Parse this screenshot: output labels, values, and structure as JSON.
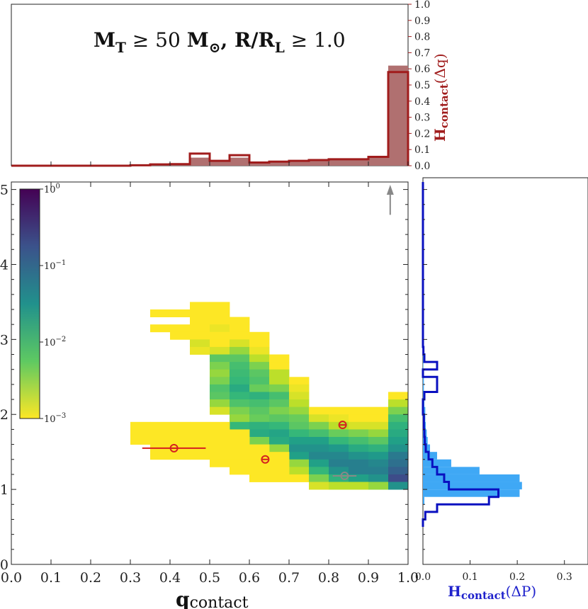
{
  "title": "M_T ≥ 50 M_⊙, R/R_L ≥ 1.0",
  "title_parts": {
    "mt_base": "M",
    "mt_sub": "T",
    "geq1": " ≥ 50 ",
    "msun_base": "M",
    "msun_sub": "⊙",
    "comma_r": ", R/R",
    "rl_sub": "L",
    "geq2": " ≥ 1.0"
  },
  "colors": {
    "top_hist_fill": "#b07070",
    "top_hist_line": "#a01c1c",
    "right_hist_fill": "#3fa8f5",
    "right_hist_line": "#0a10c0",
    "marker_red": "#d42020",
    "marker_gray": "#888888",
    "arrow_gray": "#888888"
  },
  "chart_data": [
    {
      "id": "main_heatmap",
      "type": "heatmap",
      "xlabel": "q_contact",
      "xlabel_parts": {
        "main": "q",
        "sub": "contact"
      },
      "ylabel": "",
      "xlim": [
        0.0,
        1.0
      ],
      "ylim": [
        0,
        5.1
      ],
      "x_ticks": [
        "0.0",
        "0.1",
        "0.2",
        "0.3",
        "0.4",
        "0.5",
        "0.6",
        "0.7",
        "0.8",
        "0.9",
        "1.0"
      ],
      "y_ticks": [
        "0",
        "1",
        "2",
        "3",
        "4",
        "5"
      ],
      "colorbar": {
        "scale": "log",
        "min": 0.001,
        "max": 1.0,
        "tick_labels": [
          "10^0",
          "10^-1",
          "10^-2",
          "10^-3"
        ],
        "ticks": [
          {
            "base": "10",
            "exp": "0"
          },
          {
            "base": "10",
            "exp": "−1"
          },
          {
            "base": "10",
            "exp": "−2"
          },
          {
            "base": "10",
            "exp": "−3"
          }
        ]
      },
      "cell_width_q": 0.05,
      "cell_height_p": 0.1,
      "cells": [
        [
          0.35,
          3.3,
          0.001
        ],
        [
          0.35,
          3.1,
          0.001
        ],
        [
          0.4,
          3.3,
          0.001
        ],
        [
          0.4,
          3.1,
          0.001
        ],
        [
          0.4,
          3.0,
          0.001
        ],
        [
          0.45,
          3.4,
          0.001
        ],
        [
          0.45,
          3.3,
          0.001
        ],
        [
          0.45,
          3.2,
          0.001
        ],
        [
          0.45,
          3.1,
          0.001
        ],
        [
          0.45,
          3.0,
          0.001
        ],
        [
          0.45,
          2.9,
          0.0015
        ],
        [
          0.45,
          2.8,
          0.0012
        ],
        [
          0.5,
          3.4,
          0.001
        ],
        [
          0.5,
          3.3,
          0.001
        ],
        [
          0.5,
          3.2,
          0.001
        ],
        [
          0.5,
          3.1,
          0.0012
        ],
        [
          0.5,
          3.0,
          0.001
        ],
        [
          0.5,
          2.9,
          0.001
        ],
        [
          0.5,
          2.8,
          0.0015
        ],
        [
          0.5,
          2.7,
          0.006
        ],
        [
          0.5,
          2.6,
          0.004
        ],
        [
          0.5,
          2.5,
          0.003
        ],
        [
          0.5,
          2.4,
          0.004
        ],
        [
          0.5,
          2.3,
          0.007
        ],
        [
          0.5,
          2.2,
          0.006
        ],
        [
          0.5,
          2.1,
          0.003
        ],
        [
          0.5,
          2.0,
          0.0015
        ],
        [
          0.55,
          3.2,
          0.001
        ],
        [
          0.55,
          3.1,
          0.001
        ],
        [
          0.55,
          3.0,
          0.001
        ],
        [
          0.55,
          2.9,
          0.0015
        ],
        [
          0.55,
          2.8,
          0.003
        ],
        [
          0.55,
          2.7,
          0.006
        ],
        [
          0.55,
          2.6,
          0.008
        ],
        [
          0.55,
          2.5,
          0.009
        ],
        [
          0.55,
          2.4,
          0.01
        ],
        [
          0.55,
          2.3,
          0.015
        ],
        [
          0.55,
          2.2,
          0.01
        ],
        [
          0.55,
          2.1,
          0.007
        ],
        [
          0.55,
          2.0,
          0.004
        ],
        [
          0.55,
          1.9,
          0.003
        ],
        [
          0.55,
          1.8,
          0.01
        ],
        [
          0.6,
          3.0,
          0.001
        ],
        [
          0.6,
          2.9,
          0.001
        ],
        [
          0.6,
          2.8,
          0.0012
        ],
        [
          0.6,
          2.7,
          0.002
        ],
        [
          0.6,
          2.6,
          0.004
        ],
        [
          0.6,
          2.5,
          0.006
        ],
        [
          0.6,
          2.4,
          0.007
        ],
        [
          0.6,
          2.3,
          0.005
        ],
        [
          0.6,
          2.2,
          0.012
        ],
        [
          0.6,
          2.1,
          0.008
        ],
        [
          0.6,
          2.0,
          0.006
        ],
        [
          0.6,
          1.9,
          0.005
        ],
        [
          0.6,
          1.8,
          0.012
        ],
        [
          0.6,
          1.7,
          0.015
        ],
        [
          0.6,
          1.6,
          0.004
        ],
        [
          0.65,
          2.7,
          0.001
        ],
        [
          0.65,
          2.6,
          0.001
        ],
        [
          0.65,
          2.5,
          0.002
        ],
        [
          0.65,
          2.4,
          0.002
        ],
        [
          0.65,
          2.3,
          0.004
        ],
        [
          0.65,
          2.2,
          0.008
        ],
        [
          0.65,
          2.1,
          0.006
        ],
        [
          0.65,
          2.0,
          0.004
        ],
        [
          0.65,
          1.9,
          0.006
        ],
        [
          0.65,
          1.8,
          0.01
        ],
        [
          0.65,
          1.7,
          0.018
        ],
        [
          0.65,
          1.6,
          0.015
        ],
        [
          0.65,
          1.5,
          0.003
        ],
        [
          0.7,
          2.4,
          0.001
        ],
        [
          0.7,
          2.3,
          0.0012
        ],
        [
          0.7,
          2.2,
          0.0015
        ],
        [
          0.7,
          2.1,
          0.002
        ],
        [
          0.7,
          2.0,
          0.003
        ],
        [
          0.7,
          1.9,
          0.005
        ],
        [
          0.7,
          1.8,
          0.006
        ],
        [
          0.7,
          1.7,
          0.01
        ],
        [
          0.7,
          1.6,
          0.02
        ],
        [
          0.7,
          1.5,
          0.03
        ],
        [
          0.7,
          1.4,
          0.02
        ],
        [
          0.7,
          1.3,
          0.003
        ],
        [
          0.7,
          1.2,
          0.002
        ],
        [
          0.7,
          1.1,
          0.001
        ],
        [
          0.75,
          2.0,
          0.001
        ],
        [
          0.75,
          1.9,
          0.0015
        ],
        [
          0.75,
          1.8,
          0.004
        ],
        [
          0.75,
          1.7,
          0.008
        ],
        [
          0.75,
          1.6,
          0.02
        ],
        [
          0.75,
          1.5,
          0.03
        ],
        [
          0.75,
          1.4,
          0.04
        ],
        [
          0.75,
          1.3,
          0.02
        ],
        [
          0.75,
          1.2,
          0.01
        ],
        [
          0.75,
          1.1,
          0.004
        ],
        [
          0.75,
          1.0,
          0.0015
        ],
        [
          0.8,
          2.0,
          0.001
        ],
        [
          0.8,
          1.9,
          0.0012
        ],
        [
          0.8,
          1.8,
          0.002
        ],
        [
          0.8,
          1.7,
          0.005
        ],
        [
          0.8,
          1.6,
          0.01
        ],
        [
          0.8,
          1.5,
          0.025
        ],
        [
          0.8,
          1.4,
          0.04
        ],
        [
          0.8,
          1.3,
          0.05
        ],
        [
          0.8,
          1.2,
          0.03
        ],
        [
          0.8,
          1.1,
          0.012
        ],
        [
          0.8,
          1.0,
          0.002
        ],
        [
          0.85,
          2.0,
          0.001
        ],
        [
          0.85,
          1.9,
          0.001
        ],
        [
          0.85,
          1.8,
          0.0015
        ],
        [
          0.85,
          1.7,
          0.004
        ],
        [
          0.85,
          1.6,
          0.008
        ],
        [
          0.85,
          1.5,
          0.015
        ],
        [
          0.85,
          1.4,
          0.03
        ],
        [
          0.85,
          1.3,
          0.05
        ],
        [
          0.85,
          1.2,
          0.05
        ],
        [
          0.85,
          1.1,
          0.02
        ],
        [
          0.85,
          1.0,
          0.002
        ],
        [
          0.9,
          2.0,
          0.001
        ],
        [
          0.9,
          1.9,
          0.001
        ],
        [
          0.9,
          1.8,
          0.0015
        ],
        [
          0.9,
          1.7,
          0.003
        ],
        [
          0.9,
          1.6,
          0.006
        ],
        [
          0.9,
          1.5,
          0.012
        ],
        [
          0.9,
          1.4,
          0.025
        ],
        [
          0.9,
          1.3,
          0.04
        ],
        [
          0.9,
          1.2,
          0.05
        ],
        [
          0.9,
          1.1,
          0.03
        ],
        [
          0.9,
          1.0,
          0.003
        ],
        [
          0.95,
          2.2,
          0.001
        ],
        [
          0.95,
          2.1,
          0.002
        ],
        [
          0.95,
          2.0,
          0.004
        ],
        [
          0.95,
          1.9,
          0.008
        ],
        [
          0.95,
          1.8,
          0.012
        ],
        [
          0.95,
          1.7,
          0.015
        ],
        [
          0.95,
          1.6,
          0.02
        ],
        [
          0.95,
          1.5,
          0.03
        ],
        [
          0.95,
          1.4,
          0.06
        ],
        [
          0.95,
          1.3,
          0.08
        ],
        [
          0.95,
          1.2,
          0.12
        ],
        [
          0.95,
          1.1,
          0.2
        ],
        [
          0.95,
          1.0,
          0.03
        ],
        [
          0.3,
          1.8,
          0.001
        ],
        [
          0.3,
          1.7,
          0.001
        ],
        [
          0.3,
          1.6,
          0.001
        ],
        [
          0.35,
          1.8,
          0.001
        ],
        [
          0.35,
          1.7,
          0.001
        ],
        [
          0.35,
          1.6,
          0.001
        ],
        [
          0.35,
          1.5,
          0.001
        ],
        [
          0.35,
          1.4,
          0.001
        ],
        [
          0.4,
          1.8,
          0.001
        ],
        [
          0.4,
          1.7,
          0.001
        ],
        [
          0.4,
          1.6,
          0.001
        ],
        [
          0.4,
          1.5,
          0.001
        ],
        [
          0.4,
          1.4,
          0.001
        ],
        [
          0.45,
          1.8,
          0.001
        ],
        [
          0.45,
          1.7,
          0.001
        ],
        [
          0.45,
          1.6,
          0.001
        ],
        [
          0.45,
          1.5,
          0.001
        ],
        [
          0.45,
          1.4,
          0.001
        ],
        [
          0.5,
          1.8,
          0.001
        ],
        [
          0.5,
          1.7,
          0.001
        ],
        [
          0.5,
          1.6,
          0.001
        ],
        [
          0.5,
          1.5,
          0.001
        ],
        [
          0.5,
          1.4,
          0.001
        ],
        [
          0.5,
          1.3,
          0.001
        ],
        [
          0.55,
          1.7,
          0.001
        ],
        [
          0.55,
          1.6,
          0.001
        ],
        [
          0.55,
          1.5,
          0.001
        ],
        [
          0.55,
          1.4,
          0.001
        ],
        [
          0.55,
          1.3,
          0.001
        ],
        [
          0.55,
          1.2,
          0.001
        ],
        [
          0.6,
          1.5,
          0.001
        ],
        [
          0.6,
          1.4,
          0.001
        ],
        [
          0.6,
          1.3,
          0.001
        ],
        [
          0.6,
          1.2,
          0.001
        ],
        [
          0.6,
          1.1,
          0.001
        ],
        [
          0.65,
          1.4,
          0.001
        ],
        [
          0.65,
          1.3,
          0.001
        ],
        [
          0.65,
          1.2,
          0.001
        ],
        [
          0.65,
          1.1,
          0.001
        ]
      ],
      "markers": [
        {
          "q": 0.41,
          "p": 1.55,
          "xerr": [
            0.33,
            0.49
          ],
          "color": "red"
        },
        {
          "q": 0.64,
          "p": 1.4,
          "xerr": null,
          "color": "red"
        },
        {
          "q": 0.835,
          "p": 1.86,
          "xerr": null,
          "color": "red"
        },
        {
          "q": 0.84,
          "p": 1.18,
          "xerr": [
            0.81,
            0.87
          ],
          "color": "gray"
        }
      ],
      "arrow": {
        "q": 0.955,
        "p_from": 4.7,
        "p_to": 5.1
      }
    },
    {
      "id": "top_hist",
      "type": "bar",
      "ylabel": "H_contact(Δq)",
      "ylabel_parts": {
        "main": "H",
        "sub": "contact",
        "rest": "(Δq)"
      },
      "xlim": [
        0.0,
        1.0
      ],
      "ylim": [
        0.0,
        1.0
      ],
      "y_ticks": [
        "1.0",
        "0.9",
        "0.8",
        "0.7",
        "0.6",
        "0.5",
        "0.4",
        "0.3",
        "0.2",
        "0.1",
        "0.0"
      ],
      "bin_edges": [
        0.0,
        0.05,
        0.1,
        0.15,
        0.2,
        0.25,
        0.3,
        0.35,
        0.4,
        0.45,
        0.5,
        0.55,
        0.6,
        0.65,
        0.7,
        0.75,
        0.8,
        0.85,
        0.9,
        0.95,
        1.0
      ],
      "series": [
        {
          "name": "filled",
          "values": [
            0,
            0,
            0,
            0,
            0,
            0,
            0.002,
            0.005,
            0.01,
            0.05,
            0.03,
            0.05,
            0.025,
            0.03,
            0.035,
            0.04,
            0.045,
            0.045,
            0.05,
            0.62
          ]
        },
        {
          "name": "step",
          "values": [
            0,
            0,
            0,
            0,
            0,
            0,
            0.003,
            0.008,
            0.01,
            0.075,
            0.03,
            0.065,
            0.02,
            0.025,
            0.03,
            0.035,
            0.04,
            0.04,
            0.055,
            0.58
          ]
        }
      ]
    },
    {
      "id": "right_hist",
      "type": "bar",
      "orientation": "horizontal",
      "xlabel": "H_contact(ΔP)",
      "xlabel_parts": {
        "main": "H",
        "sub": "contact",
        "rest": "(ΔP)"
      },
      "xlim": [
        0.0,
        0.35
      ],
      "ylim": [
        0,
        5.1
      ],
      "x_ticks": [
        "0.0",
        "0.1",
        "0.2",
        "0.3"
      ],
      "bin_edges_p": [
        0.5,
        0.6,
        0.7,
        0.8,
        0.9,
        1.0,
        1.1,
        1.2,
        1.3,
        1.4,
        1.5,
        1.6,
        1.7,
        1.8,
        1.9,
        2.0,
        2.1,
        2.2,
        2.3,
        2.4,
        2.5,
        2.6,
        2.7,
        2.8,
        2.9,
        3.0
      ],
      "series": [
        {
          "name": "filled",
          "values": [
            0,
            0,
            0,
            0.003,
            0.205,
            0.21,
            0.205,
            0.12,
            0.06,
            0.03,
            0.015,
            0.01,
            0.008,
            0.006,
            0.005,
            0.005,
            0.003,
            0.003,
            0.002,
            0.002,
            0.001,
            0.001,
            0.001,
            0.001,
            0.001
          ]
        },
        {
          "name": "step",
          "values": [
            0.0,
            0.005,
            0.03,
            0.14,
            0.16,
            0.055,
            0.045,
            0.03,
            0.02,
            0.012,
            0.006,
            0.004,
            0.003,
            0.002,
            0.002,
            0.0,
            0.0,
            0.003,
            0.03,
            0.03,
            0.0,
            0.03,
            0.003,
            0.001,
            0.0
          ]
        }
      ]
    }
  ]
}
